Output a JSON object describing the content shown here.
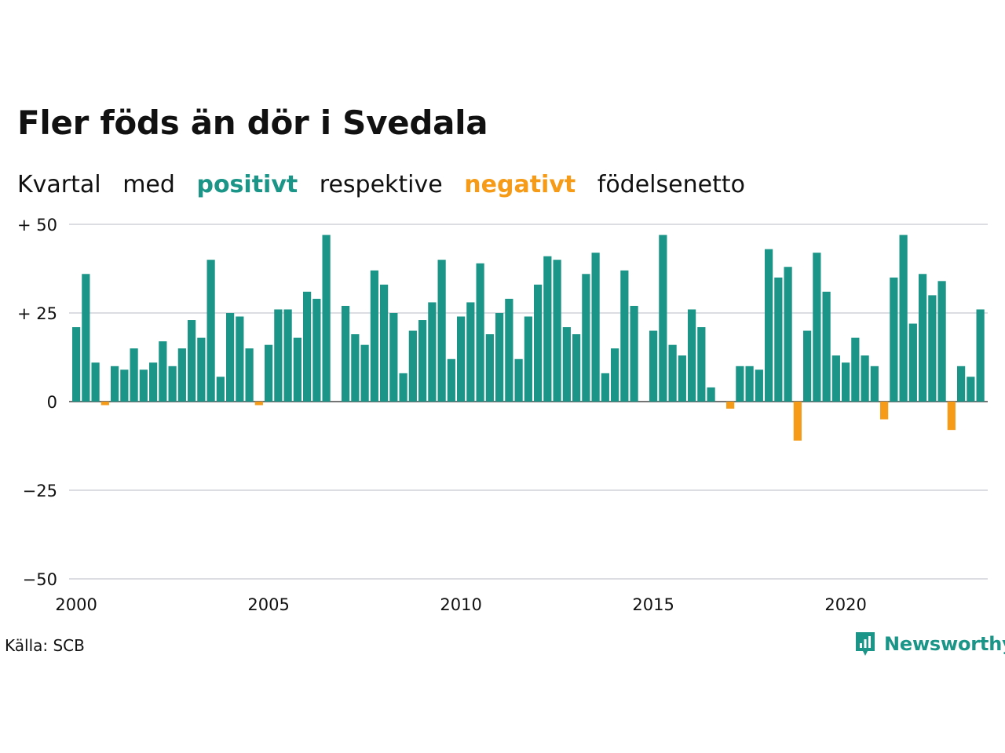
{
  "header": {
    "title": "Fler föds än dör i Svedala",
    "subtitle_words": [
      "Kvartal",
      "med",
      "positivt",
      "respektive",
      "negativt",
      "födelsenetto"
    ]
  },
  "colors": {
    "positive": "#1a9587",
    "negative": "#f59b17",
    "grid": "#dcdce3"
  },
  "footer": {
    "source": "Källa: SCB",
    "brand": "Newsworthy",
    "brand_icon": "newsworthy-logo-icon"
  },
  "chart_data": {
    "type": "bar",
    "title": "Fler föds än dör i Svedala",
    "subtitle": "Kvartal med positivt respektive negativt födelsenetto",
    "xlabel": "",
    "ylabel": "",
    "x_ticks": [
      "2000",
      "2005",
      "2010",
      "2015",
      "2020"
    ],
    "y_ticks": [
      {
        "value": 50,
        "label": "+ 50"
      },
      {
        "value": 25,
        "label": "+ 25"
      },
      {
        "value": 0,
        "label": "0"
      },
      {
        "value": -25,
        "label": "−25"
      },
      {
        "value": -50,
        "label": "−50"
      }
    ],
    "ylim": [
      -50,
      50
    ],
    "grid": true,
    "start": "2000 Q1",
    "frequency": "quarterly",
    "values": [
      21,
      36,
      11,
      -1,
      10,
      9,
      15,
      9,
      11,
      17,
      10,
      15,
      23,
      18,
      40,
      7,
      25,
      24,
      15,
      -1,
      16,
      26,
      26,
      18,
      31,
      29,
      47,
      0,
      27,
      19,
      16,
      37,
      33,
      25,
      8,
      20,
      23,
      28,
      40,
      12,
      24,
      28,
      39,
      19,
      25,
      29,
      12,
      24,
      33,
      41,
      40,
      21,
      19,
      36,
      42,
      8,
      15,
      37,
      27,
      0,
      20,
      47,
      16,
      13,
      26,
      21,
      4,
      0,
      -2,
      10,
      10,
      9,
      43,
      35,
      38,
      -11,
      20,
      42,
      31,
      13,
      11,
      18,
      13,
      10,
      -5,
      35,
      47,
      22,
      36,
      30,
      34,
      -8,
      10,
      7,
      26
    ]
  }
}
